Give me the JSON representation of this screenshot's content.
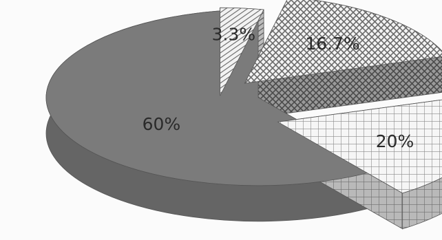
{
  "chart_data": {
    "type": "pie",
    "style": "3d-exploded",
    "slices": [
      {
        "value": 60,
        "label": "60%",
        "fill": "solid",
        "color": "#7a7a7a"
      },
      {
        "value": 3.3,
        "label": "3.3%",
        "fill": "diagonal-stripes",
        "color": "#8a8a8a"
      },
      {
        "value": 16.7,
        "label": "16.7%",
        "fill": "diagonal-crosshatch",
        "color": "#6a6a6a"
      },
      {
        "value": 20,
        "label": "20%",
        "fill": "square-grid",
        "color": "#8f8f8f"
      }
    ],
    "title": "",
    "legend": "none"
  }
}
